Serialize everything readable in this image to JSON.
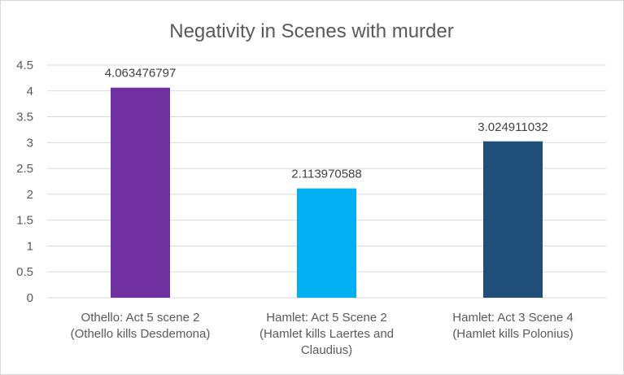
{
  "chart_data": {
    "type": "bar",
    "title": "Negativity in Scenes with murder",
    "xlabel": "",
    "ylabel": "",
    "categories": [
      [
        "Othello: Act 5 scene 2",
        "(Othello kills Desdemona)"
      ],
      [
        "Hamlet: Act 5 Scene 2",
        "(Hamlet kills Laertes and",
        "Claudius)"
      ],
      [
        "Hamlet: Act 3 Scene 4",
        "(Hamlet kills Polonius)"
      ]
    ],
    "values": [
      4.063476797,
      2.113970588,
      3.024911032
    ],
    "data_labels": [
      "4.063476797",
      "2.113970588",
      "3.024911032"
    ],
    "bar_colors": [
      "#7030a0",
      "#00b0f0",
      "#1f4e79"
    ],
    "ylim": [
      0,
      4.5
    ],
    "y_ticks": [
      "0",
      "0.5",
      "1",
      "1.5",
      "2",
      "2.5",
      "3",
      "3.5",
      "4",
      "4.5"
    ],
    "y_tick_values": [
      0,
      0.5,
      1,
      1.5,
      2,
      2.5,
      3,
      3.5,
      4,
      4.5
    ],
    "grid": true,
    "legend": "none"
  }
}
